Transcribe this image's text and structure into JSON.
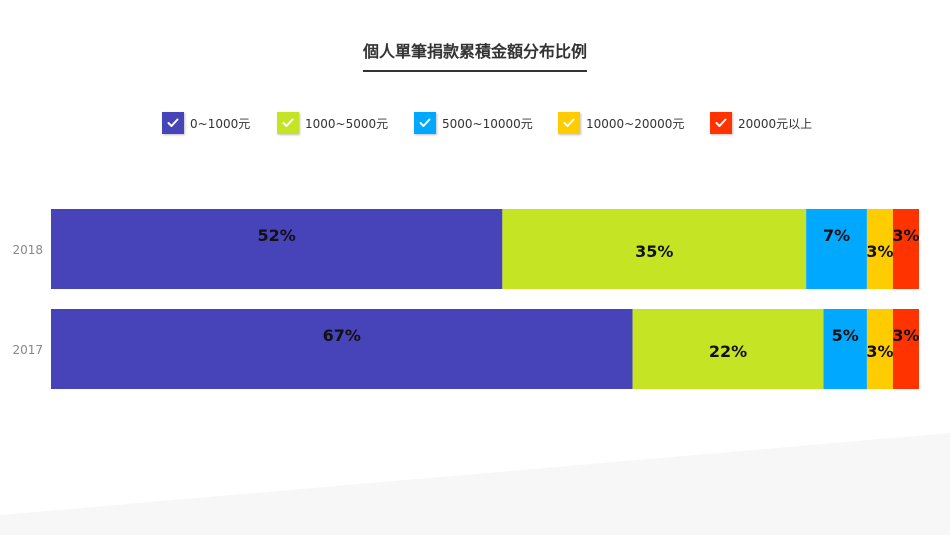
{
  "title": "個人單筆捐款累積金額分布比例",
  "chart_data": {
    "type": "bar",
    "orientation": "horizontal",
    "stacked": true,
    "normalized": true,
    "categories": [
      "2018",
      "2017"
    ],
    "series": [
      {
        "name": "0~1000元",
        "color": "#4743b8",
        "values": [
          52,
          67
        ]
      },
      {
        "name": "1000~5000元",
        "color": "#c5e424",
        "values": [
          35,
          22
        ]
      },
      {
        "name": "5000~10000元",
        "color": "#00a8ff",
        "values": [
          7,
          5
        ]
      },
      {
        "name": "10000~20000元",
        "color": "#ffcc00",
        "values": [
          3,
          3
        ]
      },
      {
        "name": "20000元以上",
        "color": "#ff3300",
        "values": [
          3,
          3
        ]
      }
    ],
    "value_suffix": "%",
    "xlim": [
      0,
      100
    ],
    "grid": false,
    "legend_position": "top"
  }
}
